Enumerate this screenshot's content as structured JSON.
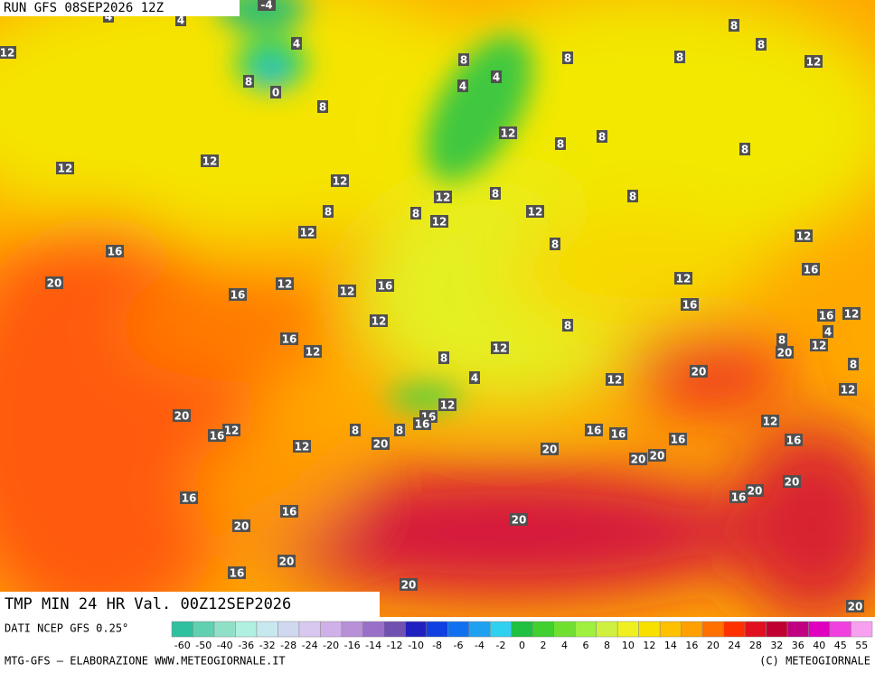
{
  "header": {
    "run": "RUN GFS 08SEP2026 12Z"
  },
  "map": {
    "labels": [
      "-4",
      "4",
      "4",
      "12",
      "4",
      "8",
      "0",
      "8",
      "8",
      "4",
      "4",
      "8",
      "8",
      "8",
      "8",
      "12",
      "12",
      "12",
      "12",
      "12",
      "8",
      "8",
      "8",
      "8",
      "8",
      "12",
      "12",
      "8",
      "12",
      "8",
      "12",
      "8",
      "12",
      "16",
      "20",
      "12",
      "16",
      "12",
      "16",
      "12",
      "12",
      "16",
      "16",
      "16",
      "12",
      "8",
      "16",
      "12",
      "8",
      "12",
      "8",
      "20",
      "12",
      "4",
      "8",
      "20",
      "4",
      "12",
      "12",
      "12",
      "20",
      "12",
      "16",
      "16",
      "16",
      "8",
      "8",
      "12",
      "16",
      "16",
      "12",
      "20",
      "20",
      "16",
      "16",
      "20",
      "20",
      "20",
      "20",
      "16",
      "16",
      "16",
      "20",
      "20",
      "20",
      "16",
      "20",
      "20"
    ]
  },
  "footer": {
    "title": "TMP MIN 24 HR Val. 00Z12SEP2026",
    "source": "DATI NCEP GFS 0.25°",
    "credit": "MTG-GFS — ELABORAZIONE WWW.METEOGIORNALE.IT",
    "copyright": "(C) METEOGIORNALE"
  },
  "colorbar": {
    "labels": [
      "-60",
      "-50",
      "-40",
      "-36",
      "-32",
      "-28",
      "-24",
      "-20",
      "-16",
      "-14",
      "-12",
      "-10",
      "-8",
      "-6",
      "-4",
      "-2",
      "0",
      "2",
      "4",
      "6",
      "8",
      "10",
      "12",
      "14",
      "16",
      "20",
      "24",
      "28",
      "32",
      "36",
      "40",
      "45",
      "55"
    ],
    "colors": [
      "#30c0a0",
      "#60d0b0",
      "#90e0c8",
      "#b0f0e0",
      "#c8e8f0",
      "#d0d8f0",
      "#d8c8f0",
      "#d0b0e8",
      "#b890d8",
      "#9870c8",
      "#7050b0",
      "#2020c0",
      "#1040e0",
      "#1070f0",
      "#20a0f0",
      "#30d0f0",
      "#20c040",
      "#40d030",
      "#70e030",
      "#a0f040",
      "#d0f040",
      "#f0f020",
      "#f8e000",
      "#ffc000",
      "#ffa000",
      "#ff7000",
      "#ff3000",
      "#e01020",
      "#c00030",
      "#c00080",
      "#e000c0",
      "#f040e0",
      "#f8a0f0"
    ]
  }
}
